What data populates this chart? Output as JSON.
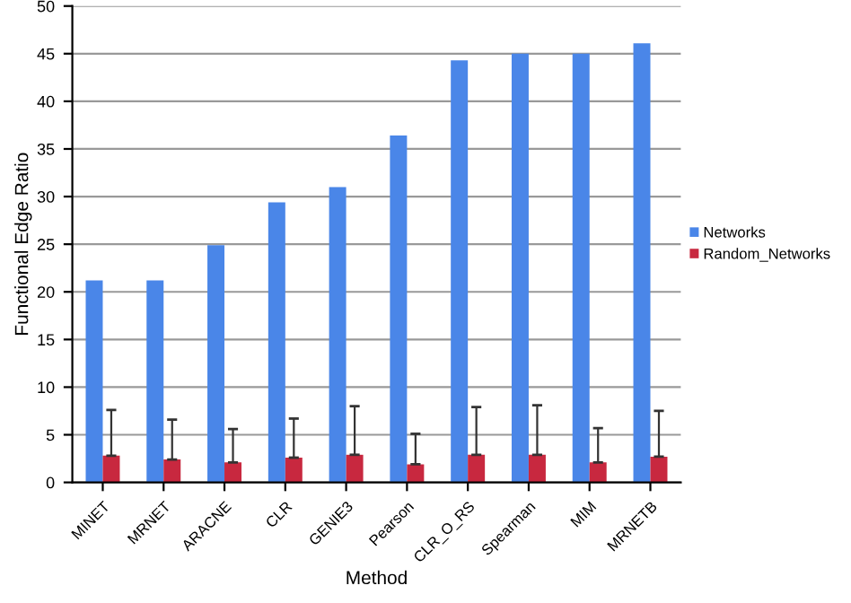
{
  "chart_data": {
    "type": "bar",
    "xlabel": "Method",
    "ylabel": "Functional Edge Ratio",
    "categories": [
      "MINET",
      "MRNET",
      "ARACNE",
      "CLR",
      "GENIE3",
      "Pearson",
      "CLR_O_RS",
      "Spearman",
      "MIM",
      "MRNETB"
    ],
    "series": [
      {
        "name": "Networks",
        "color": "#4a86e8",
        "values": [
          21.2,
          21.2,
          24.9,
          29.4,
          31.0,
          36.4,
          44.3,
          45.0,
          45.0,
          46.1
        ]
      },
      {
        "name": "Random_Networks",
        "color": "#c8283f",
        "values": [
          2.8,
          2.4,
          2.1,
          2.6,
          2.9,
          1.9,
          2.9,
          2.9,
          2.1,
          2.7
        ],
        "errors": [
          [
            2.8,
            7.6
          ],
          [
            2.4,
            6.6
          ],
          [
            2.1,
            5.6
          ],
          [
            2.6,
            6.7
          ],
          [
            2.9,
            8.0
          ],
          [
            1.9,
            5.1
          ],
          [
            2.9,
            7.9
          ],
          [
            2.9,
            8.1
          ],
          [
            2.1,
            5.7
          ],
          [
            2.7,
            7.5
          ]
        ]
      }
    ],
    "ylim": [
      0,
      50
    ],
    "yticks": [
      0,
      5,
      10,
      15,
      20,
      25,
      30,
      35,
      40,
      45,
      50
    ],
    "grid": "y",
    "legend": "right"
  }
}
